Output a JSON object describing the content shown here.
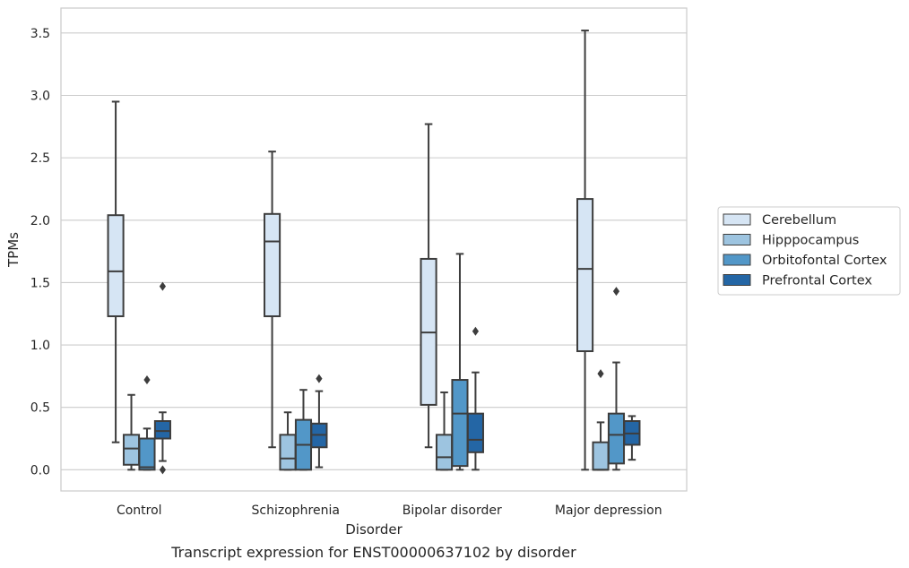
{
  "caption": "Transcript expression for ENST00000637102 by disorder",
  "chart_data": {
    "type": "box",
    "xlabel": "Disorder",
    "ylabel": "TPMs",
    "ylim": [
      -0.17,
      3.7
    ],
    "yticks": [
      0.0,
      0.5,
      1.0,
      1.5,
      2.0,
      2.5,
      3.0,
      3.5
    ],
    "ytick_labels": [
      "0.0",
      "0.5",
      "1.0",
      "1.5",
      "2.0",
      "2.5",
      "3.0",
      "3.5"
    ],
    "grid": "horizontal",
    "legend_position": "right",
    "categories": [
      "Control",
      "Schizophrenia",
      "Bipolar disorder",
      "Major depression"
    ],
    "series": [
      {
        "name": "Cerebellum",
        "color": "#d6e5f4",
        "boxes": [
          {
            "whislo": 0.22,
            "q1": 1.23,
            "med": 1.59,
            "q3": 2.04,
            "whishi": 2.95,
            "fliers": []
          },
          {
            "whislo": 0.18,
            "q1": 1.23,
            "med": 1.83,
            "q3": 2.05,
            "whishi": 2.55,
            "fliers": []
          },
          {
            "whislo": 0.18,
            "q1": 0.52,
            "med": 1.1,
            "q3": 1.69,
            "whishi": 2.77,
            "fliers": []
          },
          {
            "whislo": 0.0,
            "q1": 0.95,
            "med": 1.61,
            "q3": 2.17,
            "whishi": 3.52,
            "fliers": []
          }
        ]
      },
      {
        "name": "Hipppocampus",
        "color": "#9dc4e0",
        "boxes": [
          {
            "whislo": 0.0,
            "q1": 0.04,
            "med": 0.17,
            "q3": 0.28,
            "whishi": 0.6,
            "fliers": []
          },
          {
            "whislo": 0.0,
            "q1": 0.0,
            "med": 0.09,
            "q3": 0.28,
            "whishi": 0.46,
            "fliers": []
          },
          {
            "whislo": 0.0,
            "q1": 0.0,
            "med": 0.1,
            "q3": 0.28,
            "whishi": 0.62,
            "fliers": []
          },
          {
            "whislo": 0.0,
            "q1": 0.0,
            "med": 0.0,
            "q3": 0.22,
            "whishi": 0.38,
            "fliers": [
              0.77
            ]
          }
        ]
      },
      {
        "name": "Orbitofontal Cortex",
        "color": "#5297c8",
        "boxes": [
          {
            "whislo": 0.0,
            "q1": 0.0,
            "med": 0.02,
            "q3": 0.25,
            "whishi": 0.33,
            "fliers": [
              0.72
            ]
          },
          {
            "whislo": 0.0,
            "q1": 0.0,
            "med": 0.2,
            "q3": 0.4,
            "whishi": 0.64,
            "fliers": []
          },
          {
            "whislo": 0.0,
            "q1": 0.03,
            "med": 0.45,
            "q3": 0.72,
            "whishi": 1.73,
            "fliers": []
          },
          {
            "whislo": 0.0,
            "q1": 0.05,
            "med": 0.28,
            "q3": 0.45,
            "whishi": 0.86,
            "fliers": [
              1.43
            ]
          }
        ]
      },
      {
        "name": "Prefrontal Cortex",
        "color": "#2466a5",
        "boxes": [
          {
            "whislo": 0.07,
            "q1": 0.25,
            "med": 0.31,
            "q3": 0.39,
            "whishi": 0.46,
            "fliers": [
              1.47,
              0.0
            ]
          },
          {
            "whislo": 0.02,
            "q1": 0.18,
            "med": 0.28,
            "q3": 0.37,
            "whishi": 0.63,
            "fliers": [
              0.73
            ]
          },
          {
            "whislo": 0.0,
            "q1": 0.14,
            "med": 0.24,
            "q3": 0.45,
            "whishi": 0.78,
            "fliers": [
              1.11
            ]
          },
          {
            "whislo": 0.08,
            "q1": 0.2,
            "med": 0.29,
            "q3": 0.39,
            "whishi": 0.43,
            "fliers": []
          }
        ]
      }
    ]
  }
}
